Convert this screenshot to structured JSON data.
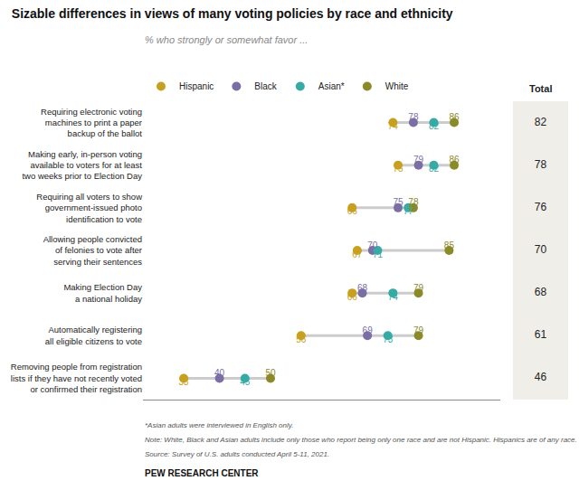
{
  "chart_data": {
    "type": "dot",
    "title": "Sizable differences in views of many voting policies by race and ethnicity",
    "subtitle": "% who strongly or somewhat favor ...",
    "annotations": [
      "*Asian adults were interviewed in English only.",
      "Note: White, Black and Asian adults include only those who report being only one race and are not Hispanic. Hispanics are of any race.",
      "Source: Survey of U.S. adults conducted April 5-11, 2021.",
      "PEW RESEARCH CENTER"
    ],
    "categories": [
      "Requiring electronic voting\nmachines to print a paper\nbackup of the ballot",
      "Making early, in-person voting\navailable to voters for at least\ntwo weeks prior to Election Day",
      "Requiring all voters to show\ngovernment-issued photo\nidentification to vote",
      "Allowing people convicted\nof felonies to vote after\nserving their sentences",
      "Making Election Day\na national holiday",
      "Automatically registering\nall eligible citizens to vote",
      "Removing people from registration\nlists if they have not recently voted\nor confirmed their registration"
    ],
    "series": [
      {
        "name": "Hispanic",
        "color": "#c8a020",
        "values": [
          74,
          75,
          66,
          67,
          66,
          56,
          33
        ]
      },
      {
        "name": "Black",
        "color": "#7a6ea5",
        "values": [
          78,
          79,
          75,
          70,
          68,
          69,
          40
        ]
      },
      {
        "name": "Asian*",
        "color": "#36aba5",
        "values": [
          82,
          82,
          77,
          71,
          74,
          73,
          45
        ]
      },
      {
        "name": "White",
        "color": "#8a8a28",
        "values": [
          86,
          86,
          78,
          85,
          79,
          79,
          50
        ]
      },
      {
        "name": "Total",
        "type": "text",
        "color": "#222222",
        "values": [
          82,
          78,
          76,
          70,
          68,
          61,
          46
        ]
      }
    ],
    "xlim": [
      25,
      95
    ],
    "grid": false,
    "legend": "top",
    "data_labels": true,
    "tick_labels": "y"
  }
}
